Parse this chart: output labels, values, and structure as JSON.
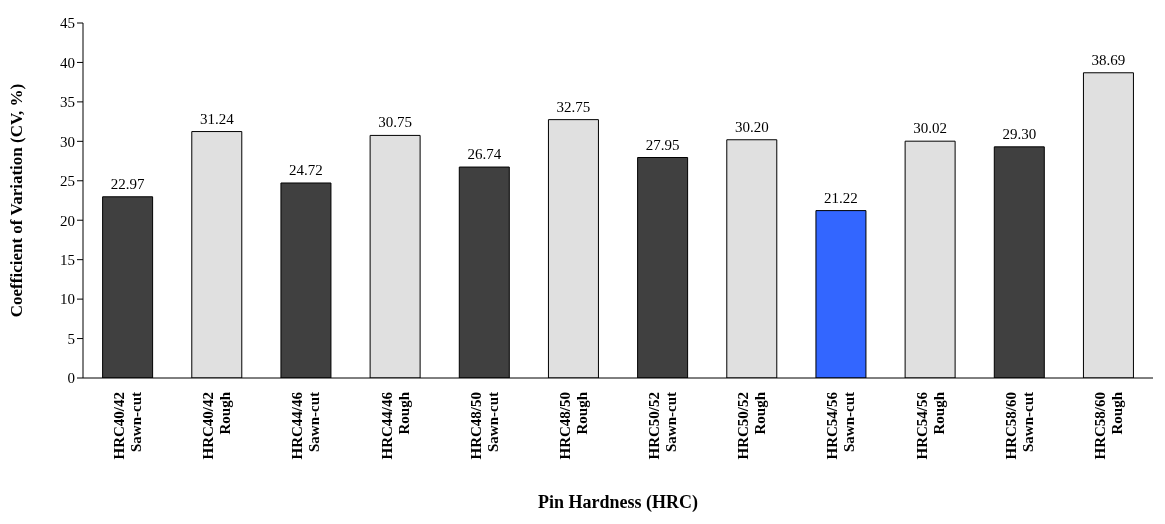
{
  "chart_data": {
    "type": "bar",
    "xlabel": "Pin Hardness (HRC)",
    "ylabel": "Coefficient of Variation (CV, %)",
    "categories": [
      "HRC40/42\nSawn-cut",
      "HRC40/42\nRough",
      "HRC44/46\nSawn-cut",
      "HRC44/46\nRough",
      "HRC48/50\nSawn-cut",
      "HRC48/50\nRough",
      "HRC50/52\nSawn-cut",
      "HRC50/52\nRough",
      "HRC54/56\nSawn-cut",
      "HRC54/56\nRough",
      "HRC58/60\nSawn-cut",
      "HRC58/60\nRough"
    ],
    "values": [
      22.97,
      31.24,
      24.72,
      30.75,
      26.74,
      32.75,
      27.95,
      30.2,
      21.22,
      30.02,
      29.3,
      38.69
    ],
    "value_labels": [
      "22.97",
      "31.24",
      "24.72",
      "30.75",
      "26.74",
      "32.75",
      "27.95",
      "30.20",
      "21.22",
      "30.02",
      "29.30",
      "38.69"
    ],
    "colors": [
      "#404040",
      "#e0e0e0",
      "#404040",
      "#e0e0e0",
      "#404040",
      "#e0e0e0",
      "#404040",
      "#e0e0e0",
      "#3366ff",
      "#e0e0e0",
      "#404040",
      "#e0e0e0"
    ],
    "ylim": [
      0,
      45
    ],
    "yticks": [
      0,
      5,
      10,
      15,
      20,
      25,
      30,
      35,
      40,
      45
    ],
    "grid": false,
    "legend": false
  }
}
